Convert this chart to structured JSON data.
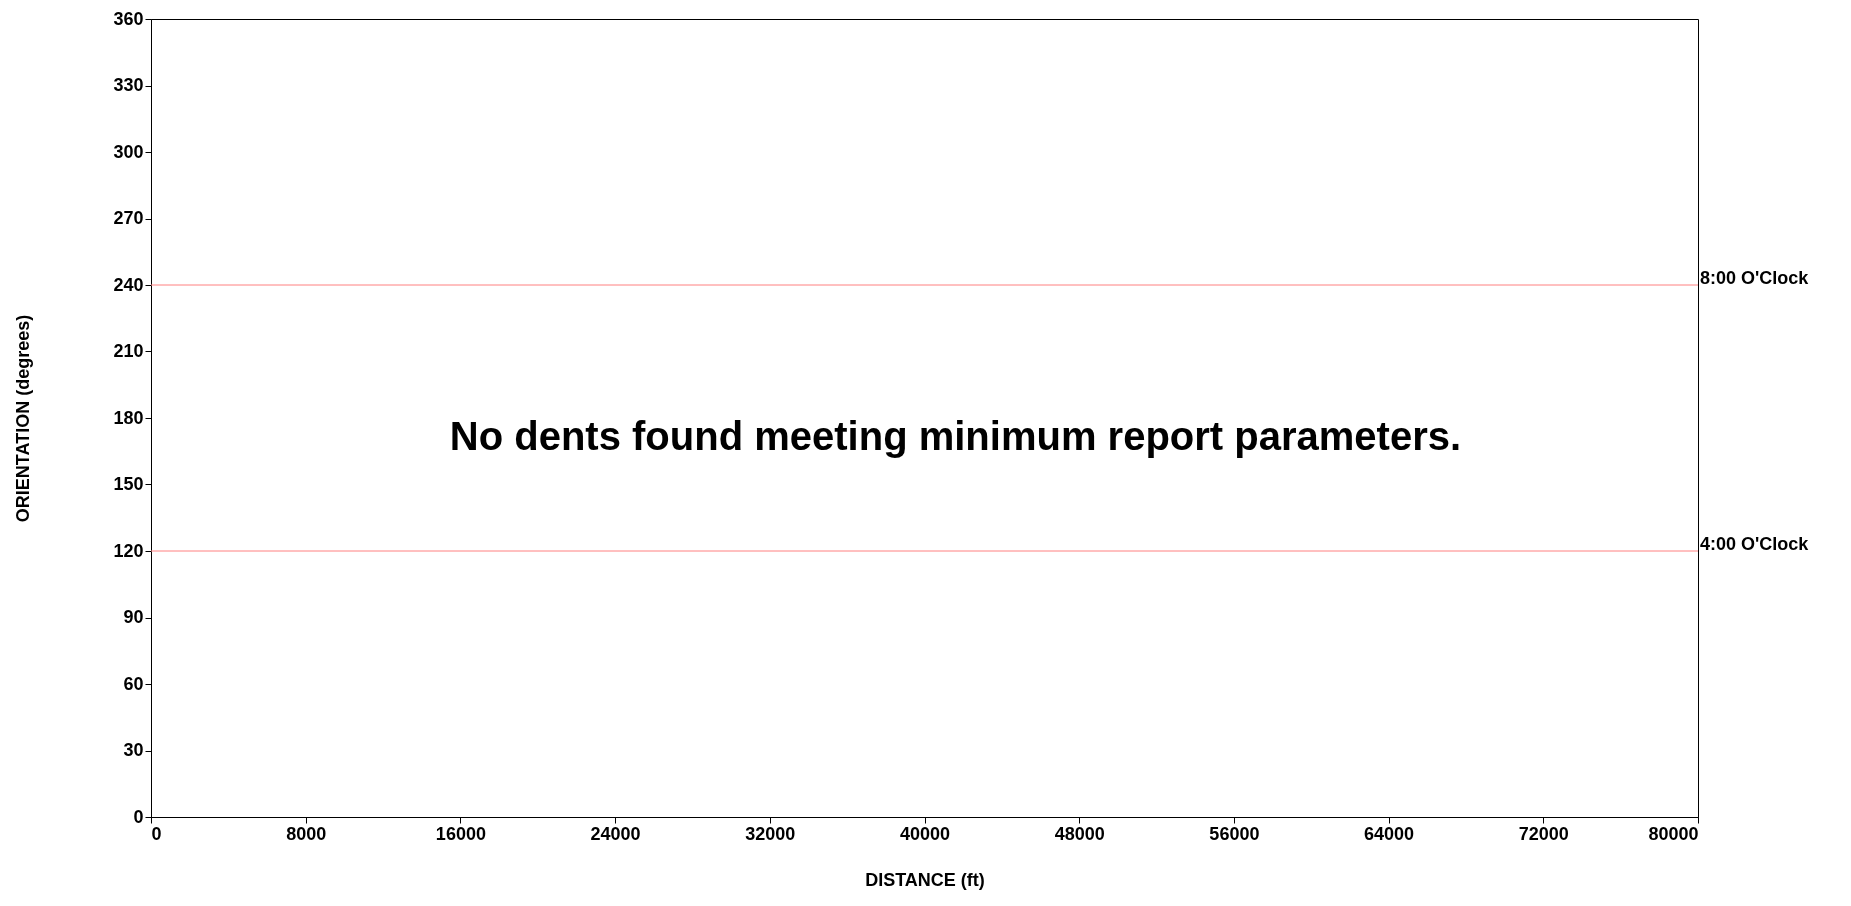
{
  "chart_data": {
    "type": "scatter",
    "xlabel": "DISTANCE (ft)",
    "ylabel": "ORIENTATION (degrees)",
    "xlim": [
      0,
      80000
    ],
    "xticks": [
      0,
      8000,
      16000,
      24000,
      32000,
      40000,
      48000,
      56000,
      64000,
      72000,
      80000
    ],
    "ylim": [
      0,
      360
    ],
    "yticks": [
      0,
      30,
      60,
      90,
      120,
      150,
      180,
      210,
      240,
      270,
      300,
      330,
      360
    ],
    "grid": false,
    "ref_lines": [
      {
        "axis": "y",
        "value": 240,
        "color": "#ff8080"
      },
      {
        "axis": "y",
        "value": 120,
        "color": "#ff8080"
      }
    ],
    "annotations": [
      "No dents found meeting minimum report parameters.",
      "8:00 O'Clock",
      "4:00 O'Clock"
    ]
  }
}
